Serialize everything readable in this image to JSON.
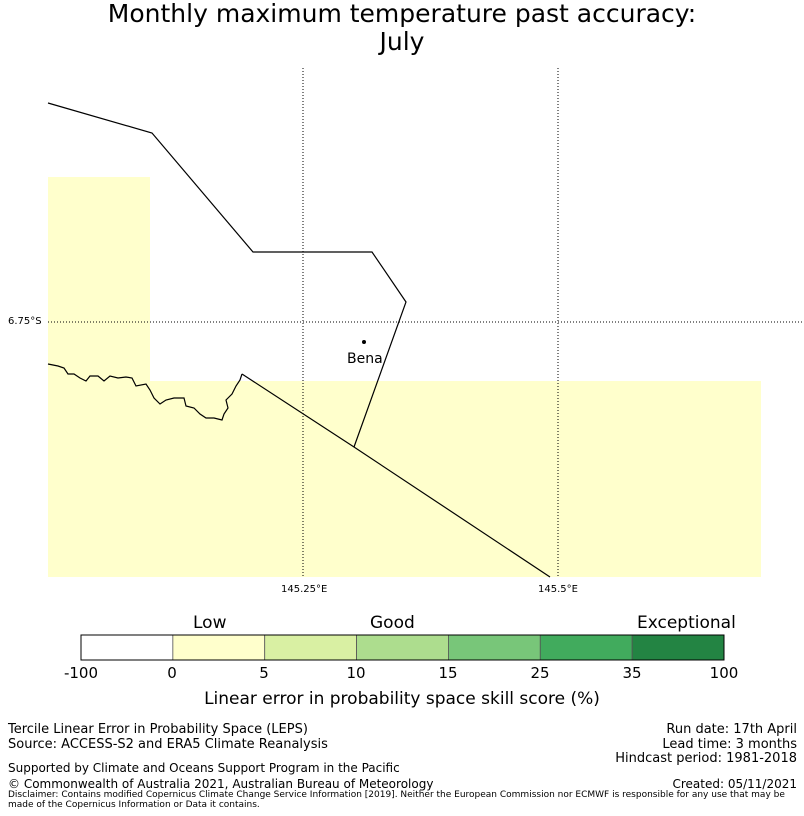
{
  "title": {
    "line1": "Monthly maximum temperature past accuracy:",
    "line2": "July"
  },
  "map": {
    "lat_label": "6.75°S",
    "lon_labels": [
      "145.25°E",
      "145.5°E"
    ],
    "place": "Bena",
    "colors": {
      "fill_low": "#ffffcc",
      "border": "#000000",
      "grid": "#000000"
    }
  },
  "colorbar": {
    "categories": [
      "Low",
      "Good",
      "Exceptional"
    ],
    "ticks": [
      "-100",
      "0",
      "5",
      "10",
      "15",
      "25",
      "35",
      "100"
    ],
    "colors": [
      "#ffffff",
      "#ffffcc",
      "#d9f0a3",
      "#addd8e",
      "#78c679",
      "#41ab5d",
      "#238443"
    ],
    "label": "Linear error in probability space skill score (%)"
  },
  "footer": {
    "left1": "Tercile Linear Error in Probability Space (LEPS)",
    "left2": "Source: ACCESS-S2 and ERA5 Climate Reanalysis",
    "run_date": "Run date: 17th April",
    "lead_time": "Lead time: 3 months",
    "hindcast": "Hindcast period: 1981-2018",
    "support": "Supported by Climate and Oceans Support Program in the Pacific",
    "copyright": "© Commonwealth of Australia 2021, Australian Bureau of Meteorology",
    "created": "Created: 05/11/2021",
    "disclaimer": "Disclaimer: Contains modified Copernicus Climate Change Service Information [2019]. Neither the European Commission nor ECMWF is responsible for any use that may be made of the Copernicus Information or Data it contains."
  }
}
